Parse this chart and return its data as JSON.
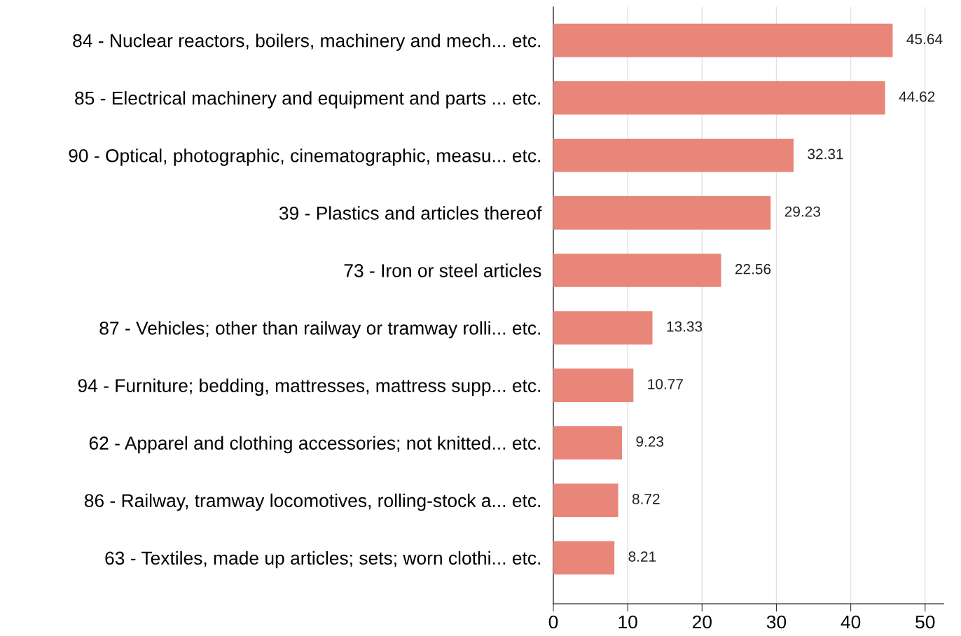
{
  "chart_data": {
    "type": "bar",
    "orientation": "horizontal",
    "categories": [
      "84 - Nuclear reactors, boilers, machinery and mech... etc.",
      "85 - Electrical machinery and equipment and parts ... etc.",
      "90 - Optical, photographic, cinematographic, measu... etc.",
      "39 - Plastics and articles thereof",
      "73 - Iron or steel articles",
      "87 - Vehicles; other than railway or tramway rolli... etc.",
      "94 - Furniture; bedding, mattresses, mattress supp... etc.",
      "62 - Apparel and clothing accessories; not knitted... etc.",
      "86 - Railway, tramway locomotives, rolling-stock a... etc.",
      "63 - Textiles, made up articles; sets; worn clothi... etc."
    ],
    "values": [
      45.64,
      44.62,
      32.31,
      29.23,
      22.56,
      13.33,
      10.77,
      9.23,
      8.72,
      8.21
    ],
    "color": "#e8867a",
    "data_labels": true,
    "xlim": [
      0,
      52.5
    ],
    "xticks": [
      0,
      10,
      20,
      30,
      40,
      50
    ],
    "grid": "x"
  }
}
